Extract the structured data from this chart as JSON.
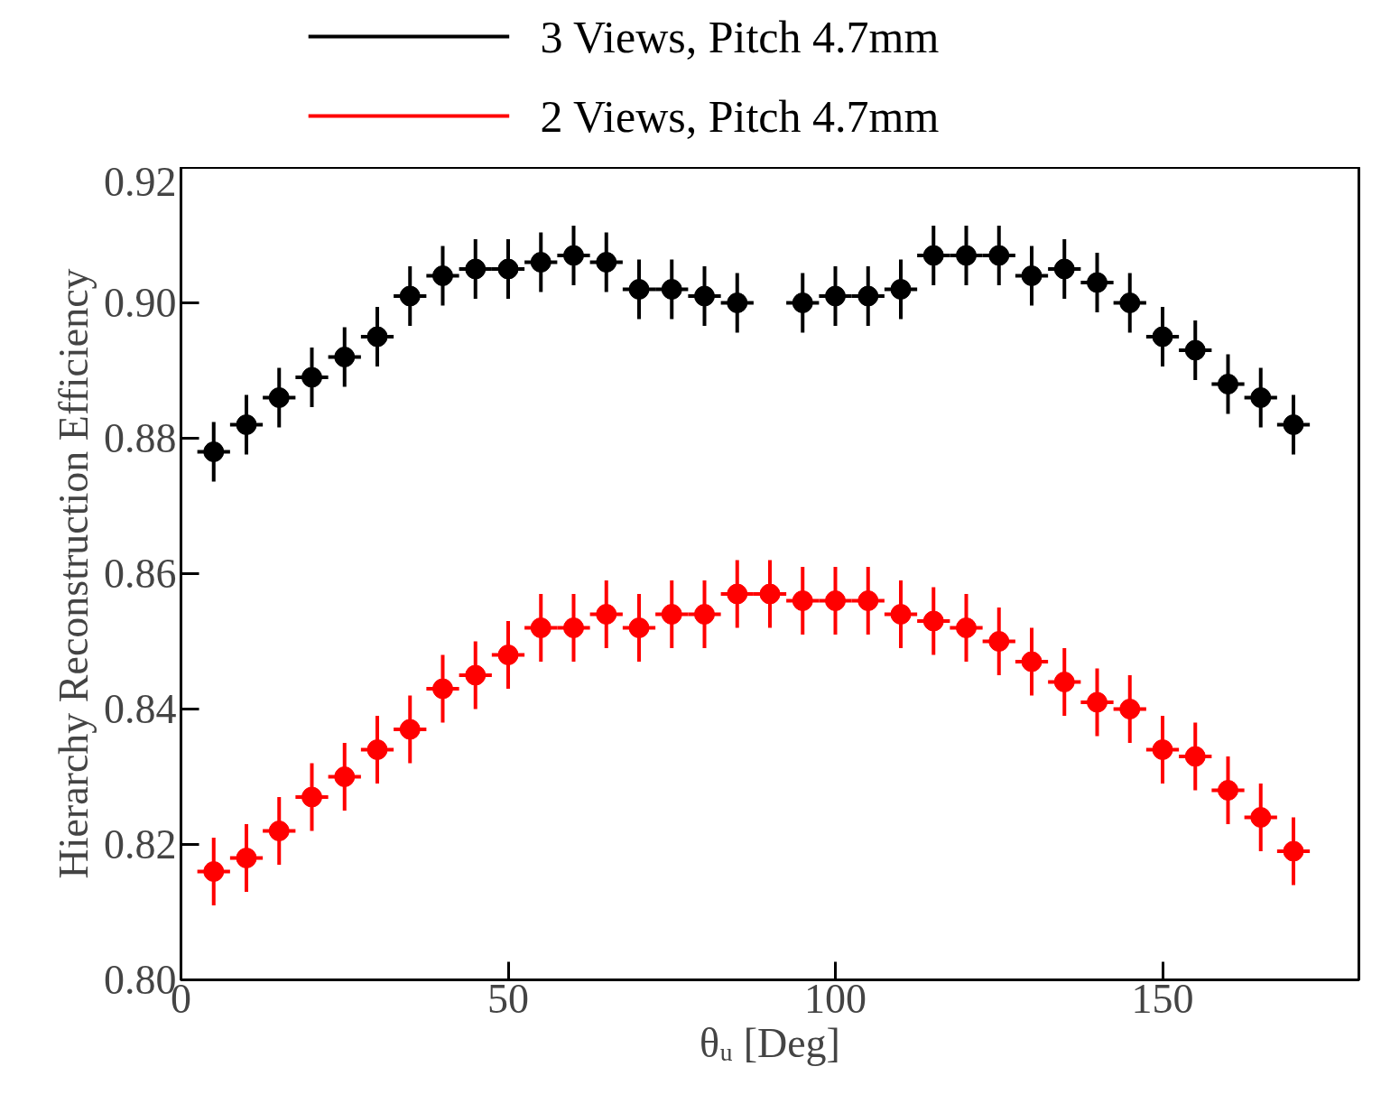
{
  "chart_data": {
    "type": "scatter",
    "xlabel": "θᵤ [Deg]",
    "ylabel": "Hierarchy Reconstruction Efficiency",
    "x": [
      5,
      10,
      15,
      20,
      25,
      30,
      35,
      40,
      45,
      50,
      55,
      60,
      65,
      70,
      75,
      80,
      85,
      90,
      95,
      100,
      105,
      110,
      115,
      120,
      125,
      130,
      135,
      140,
      145,
      150,
      155,
      160,
      165,
      170
    ],
    "xlim": [
      0,
      180
    ],
    "xticks": [
      0,
      50,
      100,
      150
    ],
    "ylim": [
      0.8,
      0.92
    ],
    "yticks": [
      {
        "value": 0.8,
        "label": "0.80"
      },
      {
        "value": 0.82,
        "label": "0.82"
      },
      {
        "value": 0.84,
        "label": "0.84"
      },
      {
        "value": 0.86,
        "label": "0.86"
      },
      {
        "value": 0.88,
        "label": "0.88"
      },
      {
        "value": 0.9,
        "label": "0.90"
      },
      {
        "value": 0.92,
        "label": "0.92"
      }
    ],
    "marker": "circle",
    "legend": "top",
    "grid": false,
    "series": [
      {
        "name": "3 Views, Pitch 4.7mm",
        "color": "#000000",
        "values": [
          0.878,
          0.882,
          0.886,
          0.889,
          0.892,
          0.895,
          0.901,
          0.904,
          0.905,
          0.905,
          0.906,
          0.907,
          0.906,
          0.902,
          0.902,
          0.901,
          0.9,
          null,
          0.9,
          0.901,
          0.901,
          0.902,
          0.907,
          0.907,
          0.907,
          0.904,
          0.905,
          0.903,
          0.9,
          0.895,
          0.893,
          0.888,
          0.886,
          0.882
        ],
        "errors": [
          0.0044,
          0.0044,
          0.0044,
          0.0044,
          0.0044,
          0.0044,
          0.0044,
          0.0044,
          0.0044,
          0.0044,
          0.0044,
          0.0044,
          0.0044,
          0.0044,
          0.0044,
          0.0044,
          0.0044,
          null,
          0.0044,
          0.0044,
          0.0044,
          0.0044,
          0.0044,
          0.0044,
          0.0044,
          0.0044,
          0.0044,
          0.0044,
          0.0044,
          0.0044,
          0.0044,
          0.0044,
          0.0044,
          0.0044
        ],
        "xerrors": [
          2.5,
          2.5,
          2.5,
          2.5,
          2.5,
          2.5,
          2.5,
          2.5,
          2.5,
          2.5,
          2.5,
          2.5,
          2.5,
          2.5,
          2.5,
          2.5,
          2.5,
          null,
          2.5,
          2.5,
          2.5,
          2.5,
          2.5,
          2.5,
          2.5,
          2.5,
          2.5,
          2.5,
          2.5,
          2.5,
          2.5,
          2.5,
          2.5,
          2.5
        ]
      },
      {
        "name": "2 Views, Pitch 4.7mm",
        "color": "#ff0000",
        "values": [
          0.816,
          0.818,
          0.822,
          0.827,
          0.83,
          0.834,
          0.837,
          0.843,
          0.845,
          0.848,
          0.852,
          0.852,
          0.854,
          0.852,
          0.854,
          0.854,
          0.857,
          0.857,
          0.856,
          0.856,
          0.856,
          0.854,
          0.853,
          0.852,
          0.85,
          0.847,
          0.844,
          0.841,
          0.84,
          0.834,
          0.833,
          0.828,
          0.824,
          0.819
        ],
        "errors": [
          0.005,
          0.005,
          0.005,
          0.005,
          0.005,
          0.005,
          0.005,
          0.005,
          0.005,
          0.005,
          0.005,
          0.005,
          0.005,
          0.005,
          0.005,
          0.005,
          0.005,
          0.005,
          0.005,
          0.005,
          0.005,
          0.005,
          0.005,
          0.005,
          0.005,
          0.005,
          0.005,
          0.005,
          0.005,
          0.005,
          0.005,
          0.005,
          0.005,
          0.005
        ],
        "xerrors": [
          2.5,
          2.5,
          2.5,
          2.5,
          2.5,
          2.5,
          2.5,
          2.5,
          2.5,
          2.5,
          2.5,
          2.5,
          2.5,
          2.5,
          2.5,
          2.5,
          2.5,
          2.5,
          2.5,
          2.5,
          2.5,
          2.5,
          2.5,
          2.5,
          2.5,
          2.5,
          2.5,
          2.5,
          2.5,
          2.5,
          2.5,
          2.5,
          2.5,
          2.5
        ]
      }
    ]
  }
}
